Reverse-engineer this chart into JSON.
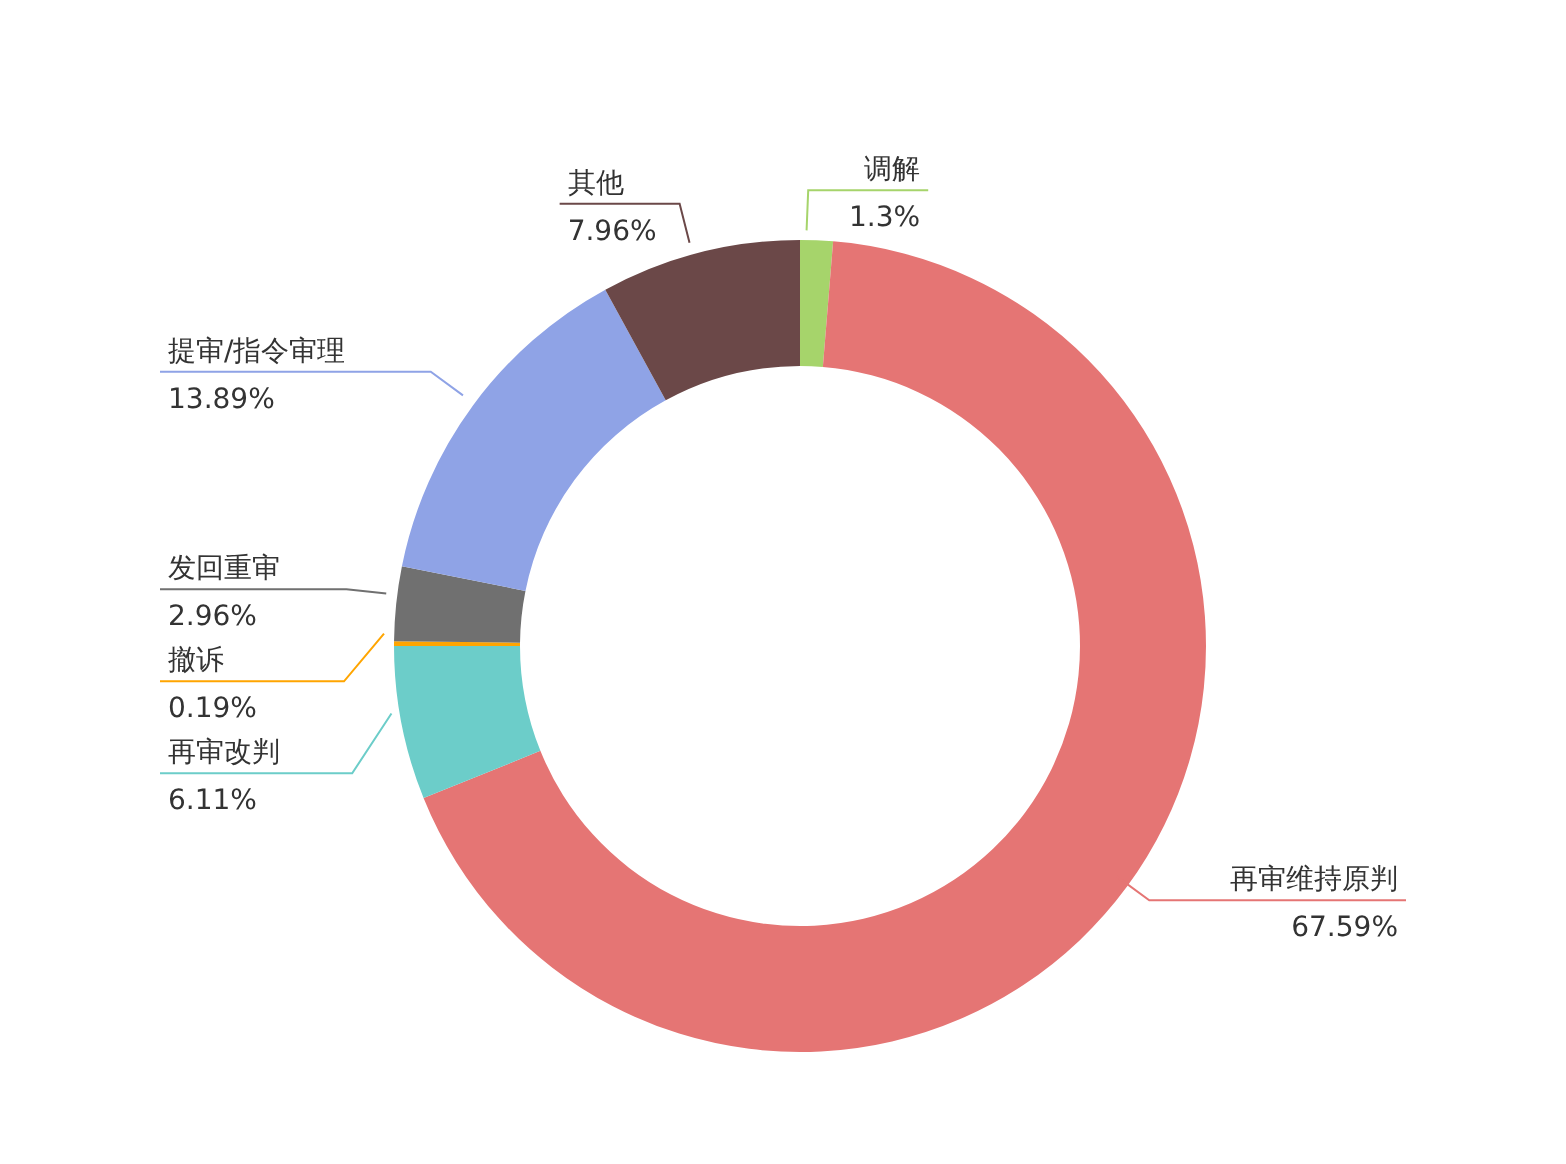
{
  "chart_data": {
    "type": "donut",
    "categories": [
      "调解",
      "再审维持原判",
      "再审改判",
      "撤诉",
      "发回重审",
      "提审/指令审理",
      "其他"
    ],
    "values": [
      1.3,
      67.59,
      6.11,
      0.19,
      2.96,
      13.89,
      7.96
    ],
    "value_labels": [
      "1.3%",
      "67.59%",
      "6.11%",
      "0.19%",
      "2.96%",
      "13.89%",
      "7.96%"
    ],
    "colors": [
      "#a6d46b",
      "#e57574",
      "#6ccdc9",
      "#ffa500",
      "#707070",
      "#8fa3e6",
      "#6b4848"
    ],
    "legend": false
  }
}
